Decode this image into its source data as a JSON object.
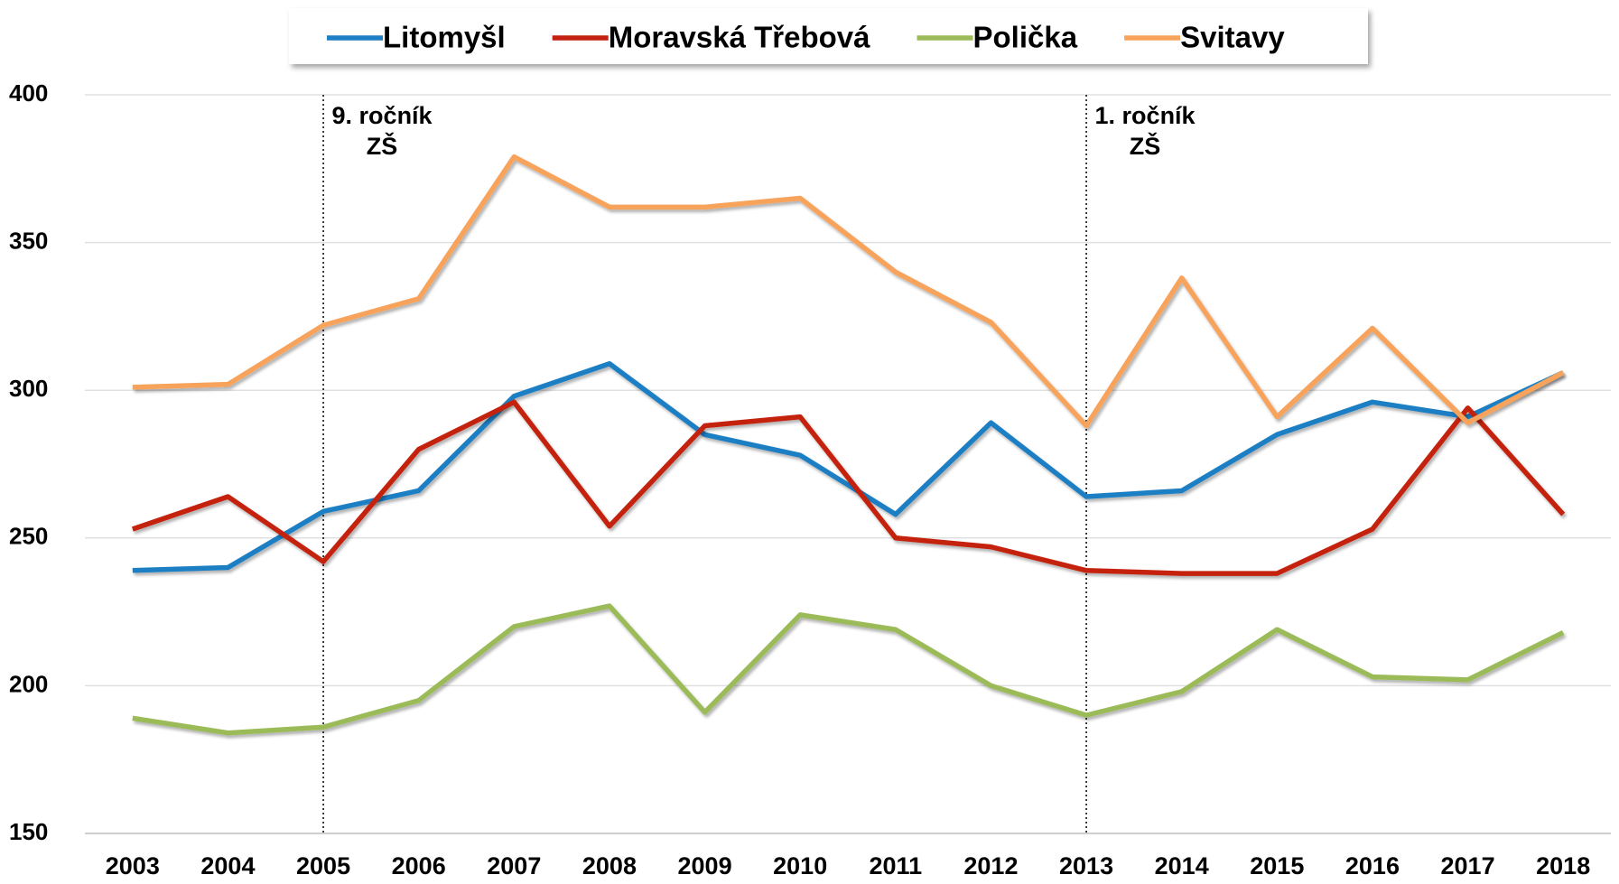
{
  "chart_data": {
    "type": "line",
    "categories": [
      "2003",
      "2004",
      "2005",
      "2006",
      "2007",
      "2008",
      "2009",
      "2010",
      "2011",
      "2012",
      "2013",
      "2014",
      "2015",
      "2016",
      "2017",
      "2018"
    ],
    "series": [
      {
        "name": "Litomyšl",
        "color": "#1f7fc4",
        "values": [
          239,
          240,
          259,
          266,
          298,
          309,
          285,
          278,
          258,
          289,
          264,
          266,
          285,
          296,
          291,
          306
        ]
      },
      {
        "name": "Moravská Třebová",
        "color": "#c4200f",
        "values": [
          253,
          264,
          242,
          280,
          296,
          254,
          288,
          291,
          250,
          247,
          239,
          238,
          238,
          253,
          294,
          258
        ]
      },
      {
        "name": "Polička",
        "color": "#9bbb59",
        "values": [
          189,
          184,
          186,
          195,
          220,
          227,
          191,
          224,
          219,
          200,
          190,
          198,
          219,
          203,
          202,
          218
        ]
      },
      {
        "name": "Svitavy",
        "color": "#f7a35c",
        "values": [
          301,
          302,
          322,
          331,
          379,
          362,
          362,
          365,
          340,
          323,
          288,
          338,
          291,
          321,
          289,
          306
        ]
      }
    ],
    "ylim": [
      150,
      400
    ],
    "yticks": [
      150,
      200,
      250,
      300,
      350,
      400
    ],
    "grid": true,
    "legend": "top",
    "annotations": [
      {
        "x": "2005",
        "lines": [
          "9. ročník",
          "ZŠ"
        ]
      },
      {
        "x": "2013",
        "lines": [
          "1. ročník",
          "ZŠ"
        ]
      }
    ]
  }
}
